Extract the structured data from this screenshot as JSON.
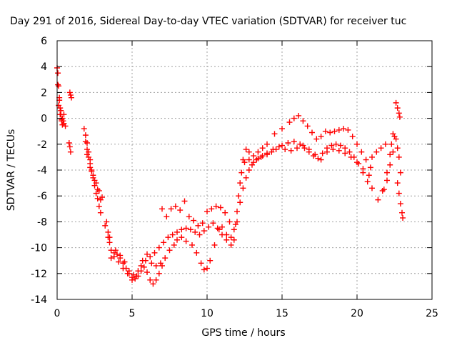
{
  "chart_data": {
    "type": "scatter",
    "title": "Day 291 of 2016, Sidereal Day-to-day VTEC variation (SDTVAR) for receiver tuc",
    "xlabel": "GPS time / hours",
    "ylabel": "SDTVAR / TECUs",
    "xlim": [
      0,
      25
    ],
    "ylim": [
      -14,
      6
    ],
    "xticks": [
      0,
      5,
      10,
      15,
      20,
      25
    ],
    "yticks": [
      -14,
      -12,
      -10,
      -8,
      -6,
      -4,
      -2,
      0,
      2,
      4,
      6
    ],
    "grid": true,
    "marker": "plus",
    "color": "#ff0000",
    "series": [
      {
        "values": [
          [
            0.0,
            3.9
          ],
          [
            0.05,
            3.5
          ],
          [
            0.1,
            2.5
          ],
          [
            0.15,
            1.6
          ],
          [
            0.2,
            0.8
          ],
          [
            0.25,
            0.3
          ],
          [
            0.3,
            -0.1
          ],
          [
            0.35,
            -0.5
          ],
          [
            0.4,
            -0.2
          ],
          [
            0.45,
            0.3
          ],
          [
            0.85,
            2.0
          ],
          [
            0.9,
            1.8
          ],
          [
            0.95,
            1.6
          ],
          [
            0.8,
            -1.9
          ],
          [
            0.85,
            -2.2
          ],
          [
            0.9,
            -2.6
          ],
          [
            1.8,
            -0.8
          ],
          [
            1.9,
            -1.3
          ],
          [
            2.0,
            -1.9
          ],
          [
            2.1,
            -2.6
          ],
          [
            2.2,
            -3.2
          ],
          [
            2.3,
            -4.0
          ],
          [
            2.4,
            -4.6
          ],
          [
            2.5,
            -5.2
          ],
          [
            2.6,
            -5.8
          ],
          [
            2.7,
            -6.2
          ],
          [
            2.8,
            -6.8
          ],
          [
            2.9,
            -7.3
          ],
          [
            3.3,
            -8.0
          ],
          [
            3.4,
            -8.8
          ],
          [
            3.5,
            -9.6
          ],
          [
            3.6,
            -10.2
          ],
          [
            3.8,
            -10.4
          ],
          [
            4.0,
            -10.5
          ],
          [
            4.2,
            -10.8
          ],
          [
            4.4,
            -11.2
          ],
          [
            4.6,
            -11.6
          ],
          [
            4.8,
            -12.0
          ],
          [
            5.0,
            -12.3
          ],
          [
            5.2,
            -12.4
          ],
          [
            5.4,
            -12.2
          ],
          [
            5.6,
            -11.8
          ],
          [
            5.8,
            -11.5
          ],
          [
            6.0,
            -11.9
          ],
          [
            6.2,
            -12.5
          ],
          [
            6.4,
            -12.8
          ],
          [
            6.6,
            -12.5
          ],
          [
            6.8,
            -12.0
          ],
          [
            7.0,
            -11.4
          ],
          [
            7.2,
            -10.8
          ],
          [
            7.5,
            -10.2
          ],
          [
            7.8,
            -9.8
          ],
          [
            8.0,
            -9.4
          ],
          [
            8.3,
            -9.2
          ],
          [
            8.6,
            -9.5
          ],
          [
            9.0,
            -9.8
          ],
          [
            9.3,
            -10.4
          ],
          [
            9.6,
            -11.2
          ],
          [
            9.8,
            -11.7
          ],
          [
            10.0,
            -11.6
          ],
          [
            10.2,
            -11.0
          ],
          [
            10.5,
            -9.8
          ],
          [
            10.8,
            -8.6
          ],
          [
            11.0,
            -8.4
          ],
          [
            11.3,
            -9.0
          ],
          [
            11.6,
            -9.8
          ],
          [
            11.8,
            -9.4
          ],
          [
            12.0,
            -8.0
          ],
          [
            12.2,
            -6.5
          ],
          [
            12.4,
            -5.4
          ],
          [
            12.6,
            -4.6
          ],
          [
            12.8,
            -4.0
          ],
          [
            13.0,
            -3.6
          ],
          [
            13.3,
            -3.2
          ],
          [
            13.6,
            -3.0
          ],
          [
            14.0,
            -2.8
          ],
          [
            14.3,
            -2.6
          ],
          [
            14.6,
            -2.4
          ],
          [
            15.0,
            -2.1
          ],
          [
            15.4,
            -1.9
          ],
          [
            15.8,
            -1.8
          ],
          [
            16.2,
            -2.0
          ],
          [
            16.5,
            -2.3
          ],
          [
            16.8,
            -2.6
          ],
          [
            17.1,
            -2.9
          ],
          [
            17.4,
            -3.1
          ],
          [
            17.7,
            -2.7
          ],
          [
            18.0,
            -2.3
          ],
          [
            18.3,
            -2.1
          ],
          [
            18.6,
            -2.0
          ],
          [
            18.9,
            -2.1
          ],
          [
            19.2,
            -2.3
          ],
          [
            19.5,
            -2.6
          ],
          [
            19.8,
            -3.0
          ],
          [
            20.1,
            -3.5
          ],
          [
            20.4,
            -4.2
          ],
          [
            20.7,
            -4.9
          ],
          [
            21.0,
            -5.4
          ],
          [
            21.8,
            -5.5
          ],
          [
            22.0,
            -4.8
          ],
          [
            22.2,
            -3.6
          ],
          [
            22.4,
            -2.6
          ],
          [
            22.5,
            -1.4
          ],
          [
            22.6,
            -1.6
          ],
          [
            22.7,
            -2.3
          ],
          [
            22.8,
            -3.0
          ],
          [
            22.9,
            -4.2
          ]
        ]
      },
      {
        "values": [
          [
            0.05,
            2.6
          ],
          [
            0.15,
            1.4
          ],
          [
            0.25,
            0.6
          ],
          [
            0.35,
            0.0
          ],
          [
            0.45,
            -0.4
          ],
          [
            0.55,
            -0.6
          ],
          [
            1.9,
            -1.8
          ],
          [
            2.0,
            -2.4
          ],
          [
            2.1,
            -3.0
          ],
          [
            2.2,
            -3.5
          ],
          [
            2.3,
            -4.1
          ],
          [
            2.5,
            -4.8
          ],
          [
            2.7,
            -5.5
          ],
          [
            2.9,
            -6.3
          ],
          [
            3.4,
            -9.2
          ],
          [
            3.6,
            -10.8
          ],
          [
            3.9,
            -10.2
          ],
          [
            4.2,
            -10.6
          ],
          [
            4.5,
            -11.1
          ],
          [
            4.8,
            -11.8
          ],
          [
            5.1,
            -12.1
          ],
          [
            5.4,
            -11.8
          ],
          [
            5.7,
            -11.0
          ],
          [
            6.0,
            -10.5
          ],
          [
            6.3,
            -11.2
          ],
          [
            6.6,
            -11.4
          ],
          [
            6.9,
            -11.2
          ],
          [
            7.0,
            -7.0
          ],
          [
            7.3,
            -7.6
          ],
          [
            7.6,
            -7.0
          ],
          [
            7.9,
            -6.8
          ],
          [
            8.2,
            -7.1
          ],
          [
            8.5,
            -6.4
          ],
          [
            8.8,
            -7.6
          ],
          [
            9.1,
            -7.9
          ],
          [
            9.4,
            -8.3
          ],
          [
            9.7,
            -8.1
          ],
          [
            10.0,
            -7.2
          ],
          [
            10.3,
            -7.0
          ],
          [
            10.6,
            -6.8
          ],
          [
            10.9,
            -6.9
          ],
          [
            11.2,
            -7.3
          ],
          [
            11.5,
            -8.0
          ],
          [
            11.8,
            -8.6
          ],
          [
            12.0,
            -7.2
          ],
          [
            12.2,
            -5.0
          ],
          [
            12.4,
            -3.2
          ],
          [
            12.6,
            -2.4
          ],
          [
            12.8,
            -2.6
          ],
          [
            13.1,
            -2.9
          ],
          [
            13.4,
            -2.6
          ],
          [
            13.7,
            -2.3
          ],
          [
            14.0,
            -2.0
          ],
          [
            14.5,
            -1.2
          ],
          [
            15.0,
            -0.8
          ],
          [
            15.5,
            -0.3
          ],
          [
            15.8,
            0.0
          ],
          [
            16.1,
            0.2
          ],
          [
            16.4,
            -0.2
          ],
          [
            16.7,
            -0.6
          ],
          [
            17.0,
            -1.1
          ],
          [
            17.3,
            -1.6
          ],
          [
            17.6,
            -1.4
          ],
          [
            17.9,
            -1.0
          ],
          [
            18.2,
            -1.1
          ],
          [
            18.5,
            -1.0
          ],
          [
            18.8,
            -0.9
          ],
          [
            19.1,
            -0.8
          ],
          [
            19.4,
            -0.9
          ],
          [
            19.7,
            -1.4
          ],
          [
            20.0,
            -2.0
          ],
          [
            20.3,
            -2.6
          ],
          [
            20.6,
            -3.2
          ],
          [
            20.9,
            -3.8
          ],
          [
            21.4,
            -6.3
          ],
          [
            21.7,
            -5.6
          ],
          [
            22.0,
            -4.2
          ],
          [
            22.2,
            -2.8
          ],
          [
            22.3,
            -2.0
          ],
          [
            22.4,
            -1.2
          ]
        ]
      },
      {
        "values": [
          [
            0.1,
            1.0
          ],
          [
            0.2,
            0.3
          ],
          [
            0.3,
            -0.2
          ],
          [
            2.0,
            -2.8
          ],
          [
            2.2,
            -3.8
          ],
          [
            2.4,
            -4.4
          ],
          [
            2.6,
            -5.0
          ],
          [
            2.8,
            -5.6
          ],
          [
            3.0,
            -6.1
          ],
          [
            3.2,
            -8.3
          ],
          [
            3.5,
            -9.2
          ],
          [
            3.8,
            -10.7
          ],
          [
            4.1,
            -11.1
          ],
          [
            4.4,
            -11.6
          ],
          [
            4.7,
            -12.0
          ],
          [
            5.0,
            -12.5
          ],
          [
            5.3,
            -12.2
          ],
          [
            5.6,
            -11.4
          ],
          [
            5.9,
            -11.0
          ],
          [
            6.2,
            -10.7
          ],
          [
            6.5,
            -10.4
          ],
          [
            6.8,
            -10.0
          ],
          [
            7.1,
            -9.6
          ],
          [
            7.4,
            -9.2
          ],
          [
            7.7,
            -9.0
          ],
          [
            8.0,
            -8.8
          ],
          [
            8.3,
            -8.6
          ],
          [
            8.6,
            -8.5
          ],
          [
            8.9,
            -8.6
          ],
          [
            9.2,
            -8.8
          ],
          [
            9.5,
            -9.0
          ],
          [
            9.8,
            -8.7
          ],
          [
            10.1,
            -8.4
          ],
          [
            10.4,
            -8.1
          ],
          [
            10.7,
            -8.5
          ],
          [
            11.0,
            -9.0
          ],
          [
            11.3,
            -9.4
          ],
          [
            11.6,
            -9.2
          ],
          [
            11.9,
            -8.2
          ],
          [
            12.1,
            -6.0
          ],
          [
            12.3,
            -4.2
          ],
          [
            12.5,
            -3.4
          ],
          [
            12.8,
            -3.2
          ],
          [
            13.1,
            -3.4
          ],
          [
            13.4,
            -3.1
          ],
          [
            13.7,
            -2.9
          ],
          [
            14.0,
            -2.7
          ],
          [
            14.4,
            -2.4
          ],
          [
            14.8,
            -2.2
          ],
          [
            15.2,
            -2.4
          ],
          [
            15.6,
            -2.5
          ],
          [
            16.0,
            -2.3
          ],
          [
            16.4,
            -2.1
          ],
          [
            16.8,
            -2.4
          ],
          [
            17.2,
            -2.8
          ],
          [
            17.6,
            -3.2
          ],
          [
            18.0,
            -2.6
          ],
          [
            18.4,
            -2.4
          ],
          [
            18.8,
            -2.5
          ],
          [
            19.2,
            -2.7
          ],
          [
            19.6,
            -3.0
          ],
          [
            20.0,
            -3.4
          ],
          [
            20.4,
            -3.9
          ],
          [
            20.8,
            -4.4
          ],
          [
            21.0,
            -3.0
          ],
          [
            21.3,
            -2.6
          ],
          [
            21.6,
            -2.3
          ],
          [
            21.9,
            -2.0
          ],
          [
            22.6,
            1.2
          ],
          [
            22.7,
            0.8
          ],
          [
            22.8,
            0.4
          ],
          [
            22.85,
            0.1
          ],
          [
            22.7,
            -5.0
          ],
          [
            22.8,
            -5.8
          ],
          [
            22.9,
            -6.6
          ],
          [
            23.0,
            -7.3
          ],
          [
            23.05,
            -7.7
          ]
        ]
      }
    ]
  }
}
